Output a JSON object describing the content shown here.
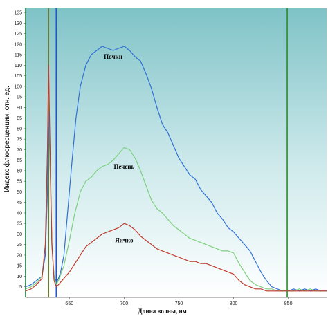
{
  "chart_data": {
    "type": "line",
    "xlabel": "Длина волны, нм",
    "ylabel": "Индекс флюоресценции, отн. ед.",
    "xlim": [
      610,
      885
    ],
    "ylim": [
      0,
      137
    ],
    "x_ticks": [
      650,
      700,
      750,
      800,
      850
    ],
    "y_ticks": [
      5,
      10,
      15,
      20,
      25,
      30,
      35,
      40,
      45,
      50,
      55,
      60,
      65,
      70,
      75,
      80,
      85,
      90,
      95,
      100,
      105,
      110,
      115,
      120,
      125,
      130,
      135
    ],
    "grid": false,
    "vertical_lines": [
      {
        "x": 610,
        "color": "#1a7a3a"
      },
      {
        "x": 631,
        "color": "#6a7a2a"
      },
      {
        "x": 638,
        "color": "#2255cc"
      },
      {
        "x": 849,
        "color": "#2a8a2a"
      }
    ],
    "series": [
      {
        "name": "Почки",
        "color": "#2f6fd6",
        "x": [
          610,
          615,
          620,
          625,
          628,
          630,
          631,
          632,
          634,
          636,
          638,
          640,
          642,
          645,
          648,
          652,
          656,
          660,
          665,
          670,
          675,
          680,
          685,
          690,
          695,
          700,
          705,
          710,
          715,
          720,
          725,
          730,
          735,
          740,
          745,
          750,
          755,
          760,
          765,
          770,
          775,
          780,
          785,
          790,
          795,
          800,
          805,
          810,
          815,
          820,
          825,
          830,
          835,
          840,
          845,
          850,
          855,
          860,
          865,
          870,
          875,
          880,
          885
        ],
        "y": [
          5,
          6,
          8,
          10,
          20,
          50,
          88,
          70,
          25,
          10,
          7,
          9,
          12,
          20,
          38,
          62,
          85,
          100,
          110,
          115,
          117,
          119,
          118,
          117,
          118,
          119,
          117,
          114,
          112,
          106,
          99,
          90,
          82,
          78,
          72,
          66,
          62,
          58,
          56,
          51,
          48,
          45,
          40,
          37,
          33,
          31,
          28,
          25,
          22,
          17,
          12,
          8,
          5,
          4,
          3,
          3,
          4,
          3,
          4,
          3,
          4,
          3,
          3
        ]
      },
      {
        "name": "Печень",
        "color": "#7ccf7c",
        "x": [
          610,
          615,
          620,
          625,
          628,
          630,
          631,
          632,
          634,
          636,
          638,
          640,
          645,
          650,
          655,
          660,
          665,
          670,
          675,
          680,
          685,
          690,
          695,
          700,
          705,
          710,
          715,
          720,
          725,
          730,
          735,
          740,
          745,
          750,
          755,
          760,
          765,
          770,
          775,
          780,
          785,
          790,
          795,
          800,
          805,
          810,
          815,
          820,
          825,
          830,
          835,
          840,
          845,
          850,
          855,
          860,
          865,
          870,
          875,
          880,
          885
        ],
        "y": [
          4,
          5,
          7,
          10,
          25,
          70,
          108,
          75,
          25,
          10,
          6,
          8,
          15,
          27,
          40,
          50,
          55,
          57,
          60,
          62,
          63,
          65,
          68,
          71,
          70,
          66,
          60,
          53,
          46,
          42,
          40,
          37,
          34,
          32,
          30,
          28,
          27,
          26,
          25,
          24,
          23,
          22,
          22,
          21,
          16,
          12,
          8,
          6,
          5,
          4,
          4,
          3,
          3,
          3,
          3,
          4,
          3,
          4,
          3,
          3,
          3
        ]
      },
      {
        "name": "Яичко",
        "color": "#c0392b",
        "x": [
          610,
          615,
          620,
          625,
          628,
          630,
          631,
          632,
          634,
          636,
          638,
          640,
          645,
          650,
          655,
          660,
          665,
          670,
          675,
          680,
          685,
          690,
          695,
          700,
          705,
          710,
          715,
          720,
          725,
          730,
          735,
          740,
          745,
          750,
          755,
          760,
          765,
          770,
          775,
          780,
          785,
          790,
          795,
          800,
          805,
          810,
          815,
          820,
          825,
          830,
          835,
          840,
          845,
          850,
          855,
          860,
          865,
          870,
          875,
          880,
          885
        ],
        "y": [
          3,
          4,
          6,
          9,
          25,
          70,
          110,
          80,
          25,
          8,
          5,
          6,
          9,
          12,
          16,
          20,
          24,
          26,
          28,
          30,
          31,
          32,
          33,
          35,
          34,
          32,
          29,
          27,
          25,
          23,
          22,
          21,
          20,
          19,
          18,
          17,
          17,
          16,
          16,
          15,
          14,
          13,
          12,
          11,
          8,
          6,
          5,
          4,
          4,
          3,
          3,
          3,
          3,
          3,
          3,
          3,
          3,
          3,
          3,
          3,
          3
        ]
      }
    ],
    "annotations": [
      {
        "text": "Почки",
        "series": "Почки",
        "x": 690,
        "y": 113
      },
      {
        "text": "Печень",
        "series": "Печень",
        "x": 700,
        "y": 61
      },
      {
        "text": "Яичко",
        "series": "Яичко",
        "x": 700,
        "y": 26
      }
    ]
  }
}
